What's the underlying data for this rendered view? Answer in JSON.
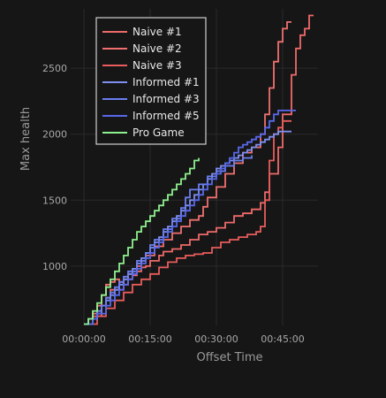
{
  "chart_data": {
    "type": "line",
    "title": "",
    "xlabel": "Offset Time",
    "ylabel": "Max health",
    "x_unit": "minutes",
    "xlim": [
      -3,
      53
    ],
    "ylim": [
      550,
      2950
    ],
    "x_ticks": [
      {
        "value": 0,
        "label": "00:00:00"
      },
      {
        "value": 15,
        "label": "00:15:00"
      },
      {
        "value": 30,
        "label": "00:30:00"
      },
      {
        "value": 45,
        "label": "00:45:00"
      }
    ],
    "y_ticks": [
      {
        "value": 1000,
        "label": "1000"
      },
      {
        "value": 1500,
        "label": "1500"
      },
      {
        "value": 2000,
        "label": "2000"
      },
      {
        "value": 2500,
        "label": "2500"
      }
    ],
    "grid": true,
    "legend_position": "top-left",
    "series": [
      {
        "name": "Naive #1",
        "color": "#ef6a6a",
        "x": [
          0,
          2,
          4,
          5,
          6,
          8,
          9,
          11,
          12,
          13,
          14,
          15,
          17,
          18,
          20,
          22,
          24,
          26,
          28,
          30,
          32,
          34,
          36,
          38,
          40,
          41,
          42,
          44,
          45,
          47,
          48,
          49,
          50,
          51,
          52
        ],
        "y": [
          560,
          620,
          700,
          760,
          820,
          880,
          900,
          930,
          960,
          990,
          1000,
          1040,
          1080,
          1110,
          1130,
          1160,
          1200,
          1240,
          1260,
          1290,
          1330,
          1380,
          1400,
          1430,
          1480,
          1560,
          1700,
          1900,
          2150,
          2450,
          2650,
          2750,
          2800,
          2900,
          2900
        ]
      },
      {
        "name": "Naive #2",
        "color": "#f07070",
        "x": [
          0,
          2,
          3,
          4,
          5,
          6,
          7,
          8,
          9,
          10,
          12,
          13,
          14,
          16,
          18,
          20,
          22,
          24,
          26,
          27,
          28,
          30,
          32,
          34,
          36,
          38,
          40,
          41,
          42,
          43,
          44,
          45,
          46,
          47
        ],
        "y": [
          560,
          640,
          700,
          780,
          860,
          880,
          900,
          820,
          860,
          940,
          1000,
          1040,
          1080,
          1150,
          1200,
          1250,
          1300,
          1350,
          1380,
          1450,
          1520,
          1600,
          1700,
          1780,
          1860,
          1900,
          2000,
          2150,
          2350,
          2550,
          2700,
          2800,
          2850,
          2850
        ]
      },
      {
        "name": "Naive #3",
        "color": "#e85c5c",
        "x": [
          0,
          3,
          5,
          7,
          9,
          11,
          13,
          15,
          17,
          19,
          21,
          23,
          25,
          27,
          29,
          31,
          33,
          35,
          37,
          39,
          40,
          41,
          42,
          43,
          44,
          45,
          46,
          47
        ],
        "y": [
          560,
          620,
          680,
          740,
          800,
          860,
          900,
          940,
          990,
          1030,
          1060,
          1080,
          1090,
          1100,
          1140,
          1180,
          1200,
          1220,
          1240,
          1260,
          1300,
          1500,
          1800,
          2000,
          2050,
          2100,
          2100,
          2100
        ]
      },
      {
        "name": "Informed #1",
        "color": "#7e8ff0",
        "x": [
          0,
          1,
          3,
          4,
          5,
          6,
          7,
          8,
          9,
          10,
          11,
          12,
          13,
          14,
          15,
          16,
          17,
          18,
          19,
          20,
          21,
          22,
          23,
          24,
          25,
          26,
          27,
          28,
          29,
          30,
          31,
          32,
          33,
          34,
          35,
          36,
          37,
          38,
          39,
          40,
          41,
          42,
          43,
          44,
          45,
          46,
          47
        ],
        "y": [
          560,
          600,
          660,
          700,
          740,
          780,
          820,
          860,
          900,
          940,
          980,
          1020,
          1060,
          1100,
          1140,
          1180,
          1220,
          1260,
          1300,
          1340,
          1380,
          1420,
          1460,
          1500,
          1540,
          1580,
          1620,
          1660,
          1700,
          1740,
          1760,
          1780,
          1800,
          1820,
          1840,
          1860,
          1880,
          1900,
          1920,
          1940,
          1960,
          1980,
          2000,
          2020,
          2020,
          2020,
          2020
        ]
      },
      {
        "name": "Informed #3",
        "color": "#6b7ff0",
        "x": [
          0,
          2,
          3,
          4,
          5,
          6,
          7,
          8,
          9,
          10,
          12,
          14,
          15,
          16,
          18,
          20,
          22,
          23,
          24,
          26,
          28,
          30,
          32,
          34,
          36,
          38
        ],
        "y": [
          560,
          600,
          640,
          700,
          760,
          800,
          840,
          880,
          920,
          960,
          1040,
          1100,
          1160,
          1200,
          1280,
          1360,
          1440,
          1520,
          1580,
          1620,
          1680,
          1720,
          1760,
          1800,
          1820,
          1840
        ]
      },
      {
        "name": "Informed #5",
        "color": "#5868ea",
        "x": [
          0,
          2,
          3,
          5,
          6,
          7,
          8,
          9,
          10,
          11,
          12,
          13,
          14,
          15,
          16,
          17,
          18,
          19,
          20,
          21,
          22,
          23,
          24,
          25,
          26,
          27,
          28,
          29,
          30,
          31,
          32,
          33,
          34,
          35,
          36,
          37,
          38,
          39,
          40,
          41,
          42,
          43,
          44,
          45,
          46,
          47,
          48
        ],
        "y": [
          560,
          600,
          640,
          700,
          740,
          780,
          820,
          860,
          900,
          940,
          980,
          1020,
          1060,
          1100,
          1140,
          1180,
          1220,
          1260,
          1300,
          1340,
          1380,
          1420,
          1460,
          1500,
          1540,
          1580,
          1620,
          1660,
          1700,
          1740,
          1780,
          1820,
          1860,
          1900,
          1920,
          1940,
          1960,
          1980,
          2000,
          2050,
          2100,
          2150,
          2180,
          2180,
          2180,
          2180,
          2180
        ]
      },
      {
        "name": "Pro Game",
        "color": "#8ef08e",
        "x": [
          0,
          1,
          2,
          3,
          4,
          5,
          6,
          7,
          8,
          9,
          10,
          11,
          12,
          13,
          14,
          15,
          16,
          17,
          18,
          19,
          20,
          21,
          22,
          23,
          24,
          25,
          26
        ],
        "y": [
          560,
          600,
          660,
          720,
          780,
          840,
          900,
          960,
          1020,
          1080,
          1140,
          1200,
          1260,
          1300,
          1340,
          1380,
          1420,
          1460,
          1500,
          1540,
          1580,
          1620,
          1660,
          1700,
          1740,
          1800,
          1820
        ]
      }
    ]
  }
}
